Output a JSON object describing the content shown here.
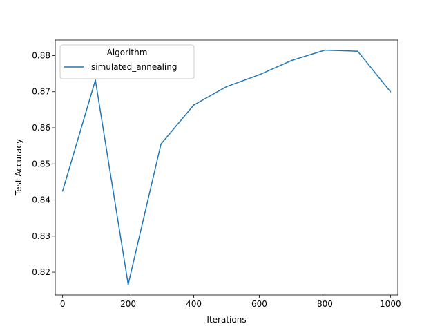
{
  "chart_data": {
    "type": "line",
    "title": "",
    "xlabel": "Iterations",
    "ylabel": "Test Accuracy",
    "xlim": [
      -22.5,
      1022.5
    ],
    "ylim": [
      0.8137,
      0.8843
    ],
    "xticks": [
      0,
      200,
      400,
      600,
      800,
      1000
    ],
    "yticks": [
      0.82,
      0.83,
      0.84,
      0.85,
      0.86,
      0.87,
      0.88
    ],
    "grid": false,
    "legend": {
      "title": "Algorithm",
      "placement": "upper-left"
    },
    "series": [
      {
        "name": "simulated_annealing",
        "color": "#1f77b4",
        "x": [
          0,
          100,
          200,
          300,
          400,
          500,
          600,
          700,
          800,
          900,
          1000
        ],
        "y": [
          0.8425,
          0.8732,
          0.8166,
          0.8555,
          0.8663,
          0.8714,
          0.8747,
          0.8787,
          0.8815,
          0.8812,
          0.87
        ]
      }
    ]
  }
}
